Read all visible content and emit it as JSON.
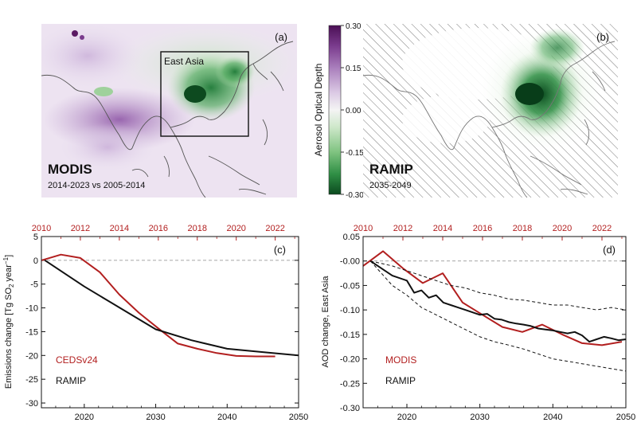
{
  "panel_a": {
    "tag": "(a)",
    "title": "MODIS",
    "subtitle": "2014-2023 vs 2005-2014",
    "box_label": "East Asia"
  },
  "panel_b": {
    "tag": "(b)",
    "title": "RAMIP",
    "subtitle": "2035-2049"
  },
  "colorbar": {
    "label": "Aerosol Optical Depth",
    "ticks": [
      "0.30",
      "0.15",
      "0.00",
      "-0.15",
      "-0.30"
    ],
    "tick_values": [
      0.3,
      0.15,
      0.0,
      -0.15,
      -0.3
    ],
    "range": [
      -0.3,
      0.3
    ],
    "positive_color": "#5b1a63",
    "negative_color": "#0f5a26"
  },
  "colors": {
    "observed": "#b21f1f",
    "model": "#111111",
    "map_positive": "#8e5aa6",
    "map_negative": "#1f8a3e",
    "coast": "#555555"
  },
  "chart_data": [
    {
      "type": "line",
      "panel": "(c)",
      "ylabel_main": "Emissions change [Tg SO",
      "ylabel_sub": "2",
      "ylabel_unit": " year",
      "ylabel_sup": "−1",
      "ylabel_close": "]",
      "xlim": [
        2014,
        2050
      ],
      "ylim": [
        -31,
        5
      ],
      "xticks": [
        2020,
        2030,
        2040,
        2050
      ],
      "yticks": [
        5,
        0,
        -5,
        -10,
        -15,
        -20,
        -25,
        -30
      ],
      "ytick_labels": [
        "5",
        "0",
        "-5",
        "-10",
        "-15",
        "-20",
        "-25",
        "-30"
      ],
      "top_axis": {
        "range": [
          2010,
          2023.2
        ],
        "ticks": [
          "2010",
          "2012",
          "2014",
          "2016",
          "2018",
          "2020",
          "2022"
        ],
        "tick_values": [
          2010,
          2012,
          2014,
          2016,
          2018,
          2020,
          2022
        ],
        "minor": 2011
      },
      "zero_line": 0,
      "legend": [
        "CEDSv24",
        "RAMIP"
      ],
      "series": [
        {
          "name": "CEDSv24",
          "axis": "top",
          "x": [
            2010,
            2011,
            2012,
            2013,
            2014,
            2015,
            2016,
            2017,
            2018,
            2019,
            2020,
            2021,
            2022
          ],
          "y": [
            0,
            1.2,
            0.5,
            -2.5,
            -7.2,
            -11,
            -14.3,
            -17.5,
            -18.6,
            -19.5,
            -20.1,
            -20.2,
            -20.2
          ]
        },
        {
          "name": "RAMIP",
          "axis": "bottom",
          "x": [
            2014.5,
            2020,
            2025,
            2030,
            2035,
            2040,
            2045,
            2050
          ],
          "y": [
            0,
            -5.5,
            -10,
            -14.5,
            -16.8,
            -18.6,
            -19.3,
            -20
          ]
        }
      ]
    },
    {
      "type": "line",
      "panel": "(d)",
      "ylabel": "AOD change, East Asia",
      "xlim": [
        2014,
        2050
      ],
      "ylim": [
        -0.3,
        0.05
      ],
      "xticks": [
        2020,
        2030,
        2040,
        2050
      ],
      "yticks": [
        0.05,
        0.0,
        -0.05,
        -0.1,
        -0.15,
        -0.2,
        -0.25,
        -0.3
      ],
      "ytick_labels": [
        "0.05",
        "-0.00",
        "-0.05",
        "-0.10",
        "-0.15",
        "-0.20",
        "-0.25",
        "-0.30"
      ],
      "top_axis": {
        "range": [
          2010,
          2023.2
        ],
        "ticks": [
          "2010",
          "2012",
          "2014",
          "2016",
          "2018",
          "2020",
          "2022"
        ],
        "tick_values": [
          2010,
          2012,
          2014,
          2016,
          2018,
          2020,
          2022
        ],
        "minor": 2011
      },
      "zero_line": 0,
      "legend": [
        "MODIS",
        "RAMIP"
      ],
      "series": [
        {
          "name": "MODIS",
          "axis": "top",
          "x": [
            2010,
            2011,
            2012,
            2013,
            2014,
            2015,
            2016,
            2017,
            2018,
            2019,
            2020,
            2021,
            2022,
            2023
          ],
          "y": [
            -0.01,
            0.02,
            -0.015,
            -0.045,
            -0.025,
            -0.085,
            -0.11,
            -0.135,
            -0.145,
            -0.13,
            -0.15,
            -0.168,
            -0.172,
            -0.165
          ]
        },
        {
          "name": "RAMIP",
          "axis": "bottom",
          "x": [
            2015,
            2018,
            2020,
            2021,
            2022,
            2023,
            2024,
            2025,
            2026,
            2027,
            2028,
            2029,
            2030,
            2031,
            2032,
            2033,
            2034,
            2035,
            2036,
            2037,
            2038,
            2039,
            2040,
            2041,
            2042,
            2043,
            2044,
            2045,
            2046,
            2047,
            2048,
            2049,
            2050
          ],
          "y": [
            0,
            -0.03,
            -0.04,
            -0.065,
            -0.06,
            -0.075,
            -0.07,
            -0.085,
            -0.09,
            -0.095,
            -0.1,
            -0.105,
            -0.11,
            -0.108,
            -0.118,
            -0.12,
            -0.125,
            -0.128,
            -0.13,
            -0.133,
            -0.138,
            -0.14,
            -0.142,
            -0.145,
            -0.148,
            -0.145,
            -0.152,
            -0.165,
            -0.16,
            -0.155,
            -0.158,
            -0.162,
            -0.16
          ]
        },
        {
          "name": "RAMIP upper",
          "axis": "bottom",
          "dashed": true,
          "x": [
            2015,
            2018,
            2020,
            2022,
            2024,
            2026,
            2028,
            2030,
            2032,
            2034,
            2036,
            2038,
            2040,
            2042,
            2044,
            2046,
            2048,
            2050
          ],
          "y": [
            0,
            -0.01,
            -0.02,
            -0.03,
            -0.04,
            -0.05,
            -0.055,
            -0.065,
            -0.07,
            -0.078,
            -0.08,
            -0.085,
            -0.09,
            -0.09,
            -0.095,
            -0.1,
            -0.095,
            -0.1
          ]
        },
        {
          "name": "RAMIP lower",
          "axis": "bottom",
          "dashed": true,
          "x": [
            2015,
            2018,
            2020,
            2022,
            2024,
            2026,
            2028,
            2030,
            2032,
            2034,
            2036,
            2038,
            2040,
            2042,
            2044,
            2046,
            2048,
            2050
          ],
          "y": [
            0,
            -0.05,
            -0.07,
            -0.095,
            -0.11,
            -0.125,
            -0.14,
            -0.155,
            -0.165,
            -0.172,
            -0.18,
            -0.19,
            -0.2,
            -0.205,
            -0.21,
            -0.215,
            -0.22,
            -0.225
          ]
        }
      ]
    }
  ]
}
